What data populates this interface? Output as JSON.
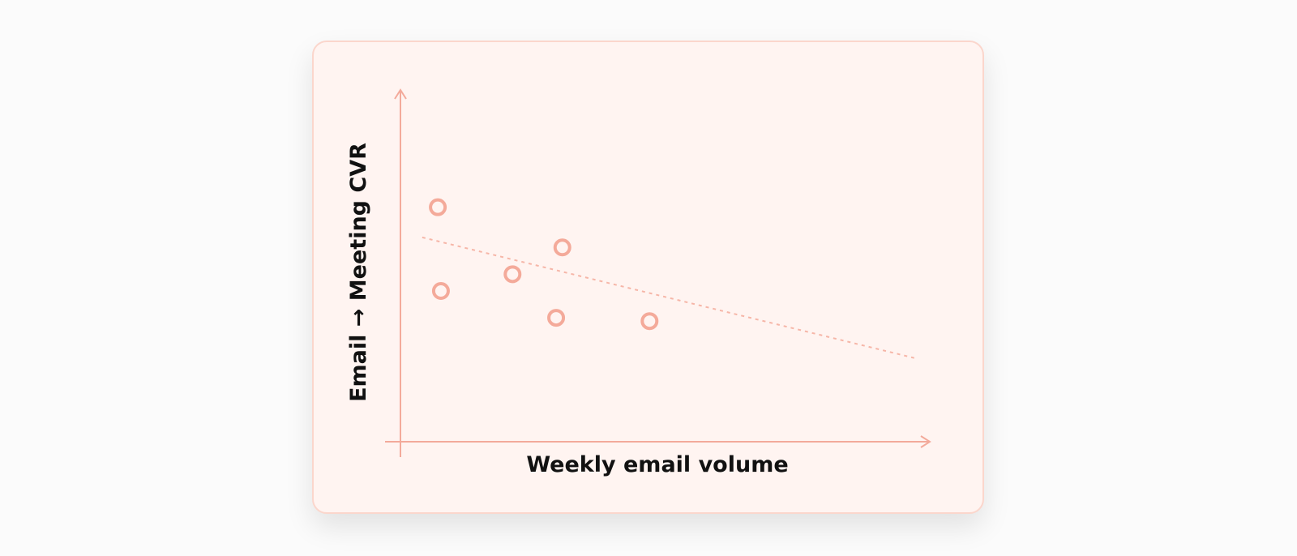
{
  "chart_data": {
    "type": "scatter",
    "xlabel": "Weekly email volume",
    "ylabel": "Email → Meeting CVR",
    "series": [
      {
        "points": [
          {
            "x": 1.2,
            "y": 7.0
          },
          {
            "x": 1.3,
            "y": 4.5
          },
          {
            "x": 3.6,
            "y": 5.0
          },
          {
            "x": 5.2,
            "y": 5.8
          },
          {
            "x": 5.0,
            "y": 3.7
          },
          {
            "x": 8.0,
            "y": 3.6
          }
        ]
      }
    ],
    "trendline": {
      "style": "dashed",
      "start": {
        "x": 0.7,
        "y": 6.1
      },
      "end": {
        "x": 16.5,
        "y": 2.5
      }
    },
    "xlim": [
      0,
      17
    ],
    "ylim": [
      0,
      10.5
    ],
    "grid": false,
    "ticks": false,
    "colors": {
      "accent": "#f4aa9a",
      "trend": "#f6b6a8",
      "axis": "#f3aa9b",
      "card_bg": "#fff4f1",
      "card_border": "#fbd6cc"
    }
  }
}
